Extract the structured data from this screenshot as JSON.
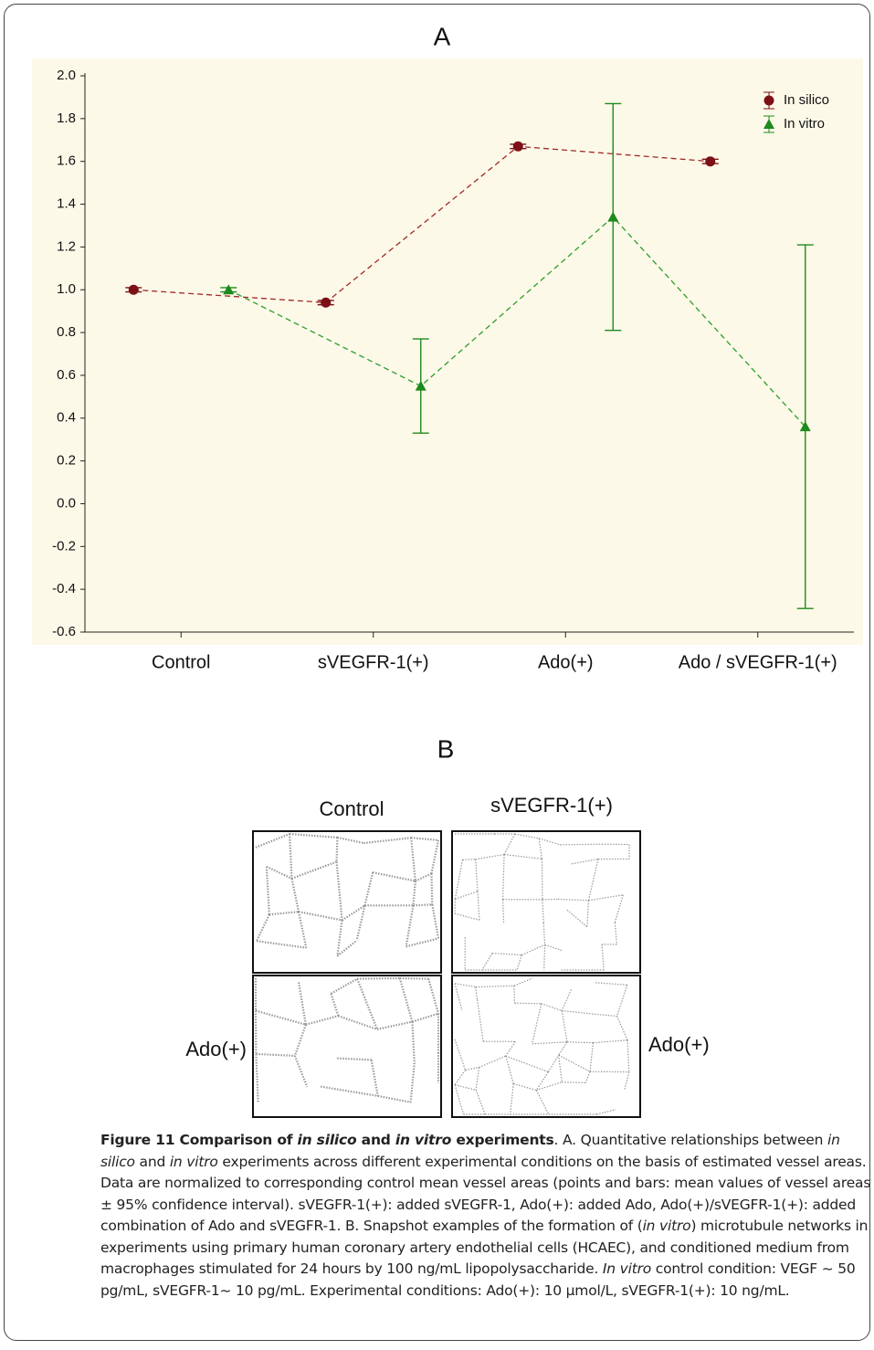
{
  "chart_data": {
    "type": "line",
    "title": "A",
    "categories": [
      "Control",
      "sVEGFR-1(+)",
      "Ado(+)",
      "Ado / sVEGFR-1(+)"
    ],
    "series": [
      {
        "name": "In silico",
        "color": "#7b1116",
        "line_color": "#a02828",
        "marker": "circle",
        "values": [
          1.0,
          0.94,
          1.67,
          1.6
        ],
        "errors": [
          0.01,
          0.01,
          0.01,
          0.01
        ]
      },
      {
        "name": "In vitro",
        "color": "#1d8a1d",
        "line_color": "#2b9e2b",
        "marker": "triangle",
        "values": [
          1.0,
          0.55,
          1.34,
          0.36
        ],
        "errors": [
          0.01,
          0.22,
          0.53,
          0.85
        ]
      }
    ],
    "ylim": [
      -0.6,
      2.0
    ],
    "yticks": [
      {
        "value": 2,
        "label": "2.0"
      },
      1.8,
      1.6,
      1.4,
      1.2,
      {
        "value": 1,
        "label": "1.0"
      },
      0.8,
      0.6,
      0.4,
      0.2,
      {
        "value": 0,
        "label": "0.0"
      },
      -0.2,
      -0.4,
      -0.6
    ],
    "grid": false,
    "legend": "upper right",
    "background": "#fdf9e8"
  },
  "panel_b": {
    "title": "B",
    "labels": [
      "Control",
      "sVEGFR-1(+)",
      "Ado(+)",
      "Ado(+)"
    ]
  },
  "caption": {
    "runs": [
      "Figure 11 Comparison of ",
      "in silico",
      " and ",
      "in vitro",
      " experiments",
      ". A. Quantitative relationships between ",
      "in silico",
      " and ",
      "in vitro",
      " experiments across different experimental conditions on the basis of estimated vessel areas. Data are normalized to corresponding control mean vessel areas (points and bars: mean values of vessel areas ± 95% confidence interval). sVEGFR-1(+): added sVEGFR-1, Ado(+): added Ado, Ado(+)/sVEGFR-1(+): added combination of Ado and sVEGFR-1. B. Snapshot examples of the formation of (",
      "in vitro",
      ") microtubule networks in experiments using primary human coronary artery endothelial cells (HCAEC), and conditioned medium from macrophages stimulated for 24 hours by 100 ng/mL lipopolysaccharide. ",
      "In vitro",
      " control condition: VEGF ~ 50 pg/mL, sVEGFR-1~ 10 pg/mL. Experimental conditions: Ado(+): 10 μmol/L, sVEGFR-1(+): 10 ng/mL."
    ]
  }
}
